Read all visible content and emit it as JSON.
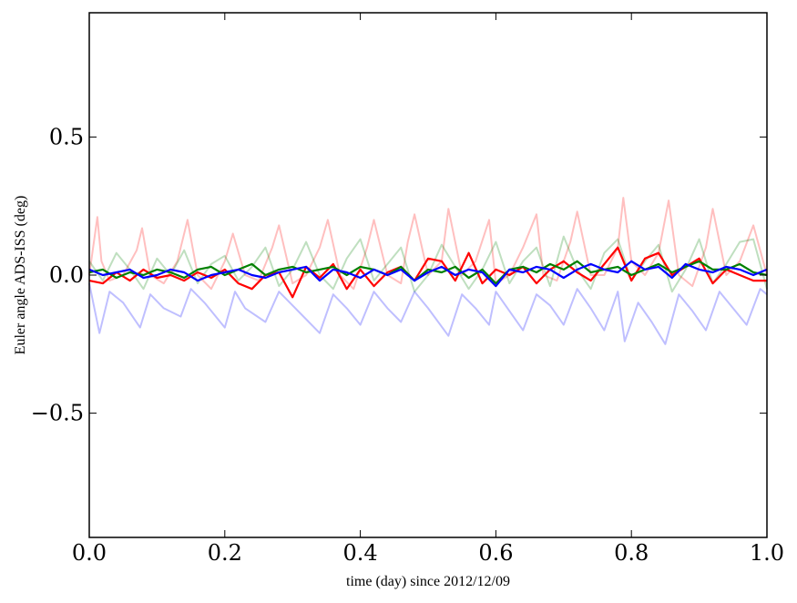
{
  "chart_data": {
    "type": "line",
    "xlabel": "time (day) since 2012/12/09",
    "ylabel": "Euler angle ADS-ISS (deg)",
    "xlim": [
      0.0,
      1.0
    ],
    "ylim": [
      -0.95,
      0.95
    ],
    "xticks": [
      0.0,
      0.2,
      0.4,
      0.6,
      0.8,
      1.0
    ],
    "xtick_labels": [
      "0.0",
      "0.2",
      "0.4",
      "0.6",
      "0.8",
      "1.0"
    ],
    "yticks": [
      -0.5,
      0.0,
      0.5
    ],
    "ytick_labels": [
      "−0.5",
      "0.0",
      "0.5"
    ],
    "grid": false,
    "series": [
      {
        "color": "#ff0000",
        "opacity": 0.25,
        "x": [
          0.0,
          0.012,
          0.018,
          0.03,
          0.05,
          0.07,
          0.078,
          0.09,
          0.11,
          0.13,
          0.145,
          0.16,
          0.18,
          0.2,
          0.212,
          0.23,
          0.25,
          0.27,
          0.28,
          0.3,
          0.32,
          0.34,
          0.352,
          0.37,
          0.39,
          0.41,
          0.42,
          0.44,
          0.46,
          0.47,
          0.48,
          0.5,
          0.52,
          0.53,
          0.55,
          0.57,
          0.59,
          0.6,
          0.62,
          0.64,
          0.66,
          0.67,
          0.69,
          0.71,
          0.72,
          0.74,
          0.76,
          0.78,
          0.788,
          0.8,
          0.82,
          0.84,
          0.855,
          0.87,
          0.89,
          0.91,
          0.92,
          0.94,
          0.96,
          0.98,
          1.0
        ],
        "y": [
          0.0,
          0.21,
          0.05,
          -0.02,
          0.0,
          0.09,
          0.17,
          0.0,
          -0.03,
          0.05,
          0.2,
          0.0,
          -0.05,
          0.05,
          0.15,
          0.0,
          -0.02,
          0.1,
          0.18,
          -0.03,
          0.0,
          0.1,
          0.2,
          0.0,
          -0.05,
          0.1,
          0.2,
          0.0,
          -0.03,
          0.12,
          0.22,
          0.0,
          0.05,
          0.24,
          0.0,
          0.05,
          0.2,
          -0.03,
          0.0,
          0.1,
          0.22,
          0.0,
          -0.02,
          0.12,
          0.23,
          0.0,
          0.0,
          0.1,
          0.28,
          0.05,
          0.0,
          0.08,
          0.27,
          0.0,
          -0.04,
          0.1,
          0.24,
          0.0,
          0.05,
          0.18,
          0.0
        ]
      },
      {
        "color": "#008000",
        "opacity": 0.25,
        "x": [
          0.0,
          0.02,
          0.04,
          0.06,
          0.08,
          0.1,
          0.12,
          0.14,
          0.16,
          0.18,
          0.2,
          0.22,
          0.24,
          0.26,
          0.28,
          0.3,
          0.32,
          0.34,
          0.36,
          0.38,
          0.4,
          0.42,
          0.44,
          0.46,
          0.48,
          0.5,
          0.52,
          0.54,
          0.56,
          0.58,
          0.6,
          0.62,
          0.64,
          0.66,
          0.68,
          0.7,
          0.72,
          0.74,
          0.76,
          0.78,
          0.8,
          0.82,
          0.84,
          0.86,
          0.88,
          0.9,
          0.92,
          0.94,
          0.96,
          0.98,
          1.0
        ],
        "y": [
          0.05,
          -0.02,
          0.08,
          0.02,
          -0.05,
          0.06,
          0.0,
          0.09,
          -0.03,
          0.04,
          0.07,
          -0.02,
          0.03,
          0.1,
          -0.04,
          0.02,
          0.12,
          0.0,
          -0.05,
          0.06,
          0.13,
          -0.02,
          0.04,
          0.1,
          -0.06,
          0.0,
          0.11,
          0.03,
          -0.05,
          0.02,
          0.12,
          -0.03,
          0.05,
          0.1,
          -0.04,
          0.14,
          0.02,
          -0.05,
          0.08,
          0.13,
          -0.02,
          0.05,
          0.11,
          -0.06,
          0.02,
          0.13,
          -0.03,
          0.04,
          0.12,
          0.13,
          -0.05
        ]
      },
      {
        "color": "#0000ff",
        "opacity": 0.25,
        "x": [
          0.0,
          0.015,
          0.03,
          0.05,
          0.075,
          0.09,
          0.11,
          0.135,
          0.15,
          0.17,
          0.2,
          0.215,
          0.23,
          0.26,
          0.28,
          0.3,
          0.32,
          0.34,
          0.36,
          0.38,
          0.4,
          0.42,
          0.44,
          0.46,
          0.48,
          0.5,
          0.53,
          0.55,
          0.57,
          0.59,
          0.6,
          0.62,
          0.64,
          0.66,
          0.68,
          0.7,
          0.72,
          0.74,
          0.76,
          0.78,
          0.79,
          0.81,
          0.83,
          0.85,
          0.87,
          0.89,
          0.91,
          0.93,
          0.95,
          0.97,
          0.99,
          1.0
        ],
        "y": [
          -0.03,
          -0.21,
          -0.06,
          -0.1,
          -0.19,
          -0.07,
          -0.12,
          -0.15,
          -0.05,
          -0.1,
          -0.19,
          -0.06,
          -0.12,
          -0.17,
          -0.06,
          -0.11,
          -0.16,
          -0.21,
          -0.07,
          -0.12,
          -0.18,
          -0.06,
          -0.12,
          -0.17,
          -0.06,
          -0.12,
          -0.22,
          -0.07,
          -0.12,
          -0.18,
          -0.06,
          -0.13,
          -0.2,
          -0.07,
          -0.11,
          -0.18,
          -0.05,
          -0.12,
          -0.2,
          -0.06,
          -0.24,
          -0.1,
          -0.17,
          -0.25,
          -0.07,
          -0.13,
          -0.2,
          -0.06,
          -0.12,
          -0.18,
          -0.05,
          -0.07
        ]
      },
      {
        "color": "#ff0000",
        "opacity": 1.0,
        "x": [
          0.0,
          0.02,
          0.04,
          0.06,
          0.08,
          0.1,
          0.12,
          0.14,
          0.16,
          0.18,
          0.2,
          0.22,
          0.24,
          0.26,
          0.28,
          0.3,
          0.32,
          0.34,
          0.36,
          0.38,
          0.4,
          0.42,
          0.44,
          0.46,
          0.48,
          0.5,
          0.52,
          0.54,
          0.56,
          0.58,
          0.6,
          0.62,
          0.64,
          0.66,
          0.68,
          0.7,
          0.72,
          0.74,
          0.76,
          0.78,
          0.8,
          0.82,
          0.84,
          0.86,
          0.88,
          0.9,
          0.92,
          0.94,
          0.96,
          0.98,
          1.0
        ],
        "y": [
          -0.02,
          -0.03,
          0.01,
          -0.02,
          0.02,
          -0.01,
          0.0,
          -0.02,
          0.01,
          -0.01,
          0.02,
          -0.03,
          -0.05,
          0.0,
          0.01,
          -0.08,
          0.03,
          -0.01,
          0.04,
          -0.05,
          0.02,
          -0.04,
          0.01,
          0.03,
          -0.02,
          0.06,
          0.05,
          -0.02,
          0.08,
          -0.03,
          0.02,
          0.0,
          0.03,
          -0.03,
          0.02,
          0.05,
          0.01,
          -0.02,
          0.04,
          0.1,
          -0.02,
          0.06,
          0.08,
          0.0,
          0.03,
          0.06,
          -0.03,
          0.02,
          0.0,
          -0.02,
          -0.02
        ]
      },
      {
        "color": "#008000",
        "opacity": 1.0,
        "x": [
          0.0,
          0.02,
          0.04,
          0.06,
          0.08,
          0.1,
          0.12,
          0.14,
          0.16,
          0.18,
          0.2,
          0.22,
          0.24,
          0.26,
          0.28,
          0.3,
          0.32,
          0.34,
          0.36,
          0.38,
          0.4,
          0.42,
          0.44,
          0.46,
          0.48,
          0.5,
          0.52,
          0.54,
          0.56,
          0.58,
          0.6,
          0.62,
          0.64,
          0.66,
          0.68,
          0.7,
          0.72,
          0.74,
          0.76,
          0.78,
          0.8,
          0.82,
          0.84,
          0.86,
          0.88,
          0.9,
          0.92,
          0.94,
          0.96,
          0.98,
          1.0
        ],
        "y": [
          0.01,
          0.02,
          -0.01,
          0.01,
          0.0,
          0.02,
          0.01,
          -0.01,
          0.02,
          0.03,
          0.0,
          0.02,
          0.04,
          0.0,
          0.02,
          0.03,
          0.01,
          0.02,
          0.03,
          0.0,
          0.03,
          0.02,
          0.0,
          0.03,
          -0.02,
          0.02,
          0.01,
          0.03,
          -0.01,
          0.02,
          -0.03,
          0.02,
          0.03,
          0.01,
          0.04,
          0.02,
          0.05,
          0.01,
          0.02,
          0.03,
          0.0,
          0.02,
          0.04,
          0.01,
          0.03,
          0.05,
          0.02,
          0.02,
          0.04,
          0.01,
          0.0
        ]
      },
      {
        "color": "#0000ff",
        "opacity": 1.0,
        "x": [
          0.0,
          0.02,
          0.04,
          0.06,
          0.08,
          0.1,
          0.12,
          0.14,
          0.16,
          0.18,
          0.2,
          0.22,
          0.24,
          0.26,
          0.28,
          0.3,
          0.32,
          0.34,
          0.36,
          0.38,
          0.4,
          0.42,
          0.44,
          0.46,
          0.48,
          0.5,
          0.52,
          0.54,
          0.56,
          0.58,
          0.6,
          0.62,
          0.64,
          0.66,
          0.68,
          0.7,
          0.72,
          0.74,
          0.76,
          0.78,
          0.8,
          0.82,
          0.84,
          0.86,
          0.88,
          0.9,
          0.92,
          0.94,
          0.96,
          0.98,
          1.0
        ],
        "y": [
          0.02,
          0.0,
          0.01,
          0.02,
          -0.01,
          0.0,
          0.02,
          0.01,
          -0.02,
          0.0,
          0.01,
          0.02,
          0.0,
          -0.01,
          0.01,
          0.02,
          0.03,
          -0.02,
          0.02,
          0.01,
          -0.01,
          0.02,
          0.0,
          0.02,
          -0.02,
          0.01,
          0.03,
          0.0,
          0.02,
          0.01,
          -0.04,
          0.02,
          0.01,
          0.03,
          0.02,
          -0.01,
          0.02,
          0.04,
          0.02,
          0.01,
          0.05,
          0.02,
          0.03,
          -0.01,
          0.04,
          0.02,
          0.01,
          0.03,
          0.02,
          0.0,
          0.02
        ]
      }
    ]
  }
}
